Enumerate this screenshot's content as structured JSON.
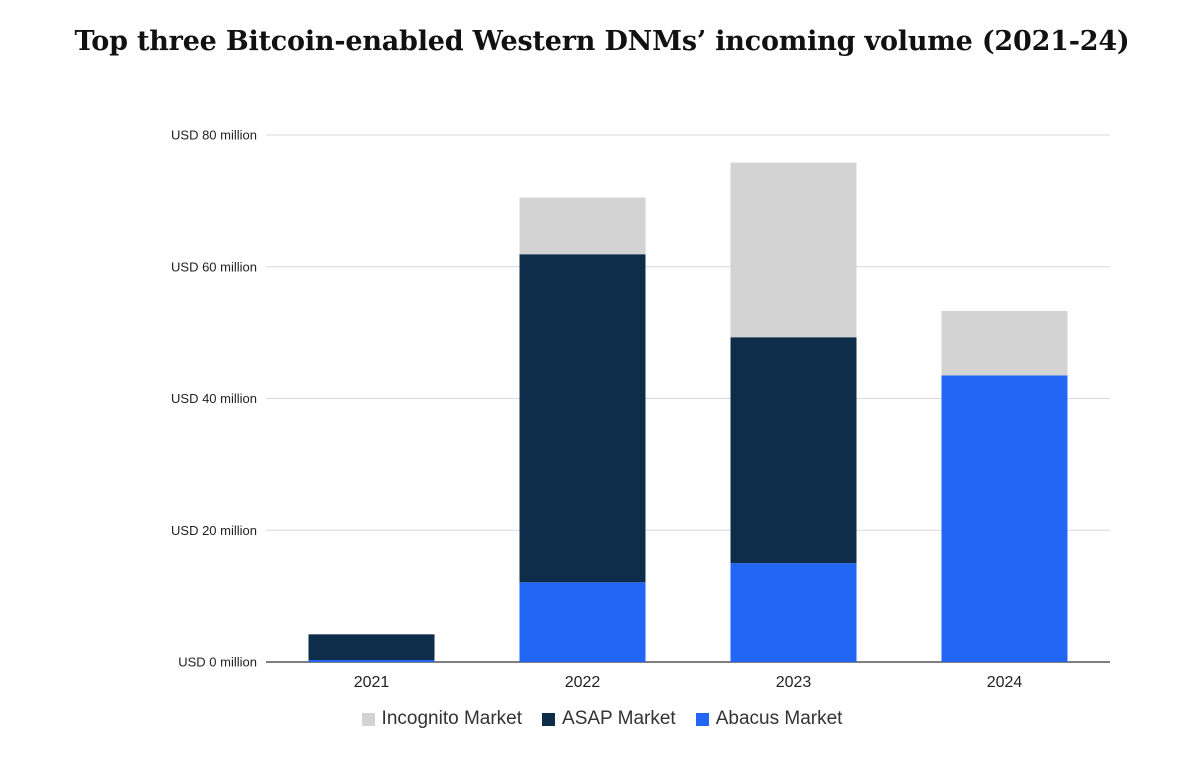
{
  "chart_data": {
    "type": "bar",
    "stacked": true,
    "title": "Top three Bitcoin-enabled Western DNMs’ incoming volume (2021-24)",
    "xlabel": "",
    "ylabel": "",
    "ylim": [
      0,
      80
    ],
    "yticks": [
      0,
      20,
      40,
      60,
      80
    ],
    "ytick_labels": [
      "USD 0 million",
      "USD 20 million",
      "USD 40 million",
      "USD 60 million",
      "USD 80 million"
    ],
    "grid": true,
    "legend_position": "bottom",
    "categories": [
      "2021",
      "2022",
      "2023",
      "2024"
    ],
    "series": [
      {
        "name": "Abacus Market",
        "color": "#2166f5",
        "values": [
          0.3,
          12.1,
          15.0,
          43.5
        ]
      },
      {
        "name": "ASAP Market",
        "color": "#0e2d4b",
        "values": [
          3.9,
          49.8,
          34.3,
          0
        ]
      },
      {
        "name": "Incognito Market",
        "color": "#d3d3d3",
        "values": [
          0,
          8.6,
          26.5,
          9.8
        ]
      }
    ],
    "legend_order": [
      "Incognito Market",
      "ASAP Market",
      "Abacus Market"
    ]
  }
}
